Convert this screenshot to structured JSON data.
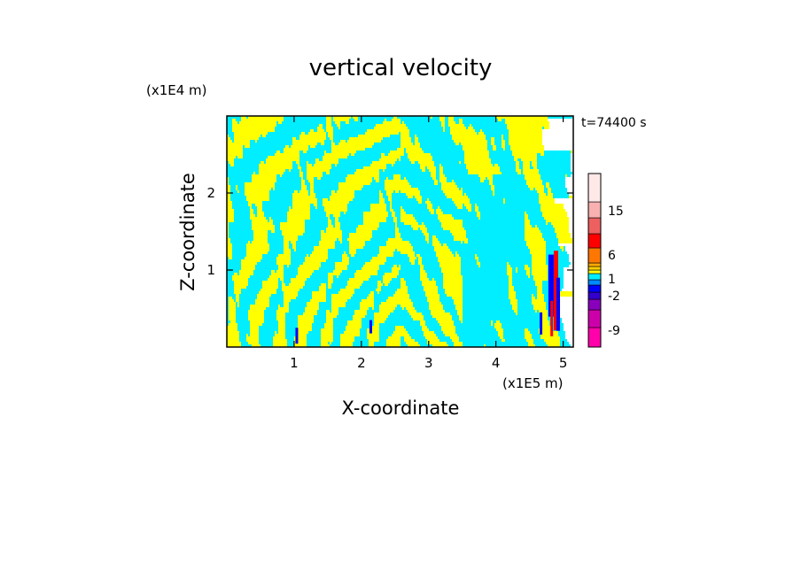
{
  "chart_data": {
    "type": "heatmap",
    "title": "vertical velocity",
    "xlabel": "X-coordinate",
    "ylabel": "Z-coordinate",
    "x_unit": "(x1E5 m)",
    "y_unit": "(x1E4 m)",
    "time_label": "t=74400 s",
    "xlim": [
      0,
      5.15
    ],
    "ylim": [
      0,
      3.0
    ],
    "x_ticks": [
      1,
      2,
      3,
      4,
      5
    ],
    "y_ticks": [
      1,
      2
    ],
    "x_tick_labels": [
      "1",
      "2",
      "3",
      "4",
      "5"
    ],
    "y_tick_labels": [
      "1",
      "2"
    ],
    "grid": false,
    "colorbar": {
      "position": "right",
      "tick_labels": [
        "15",
        "6",
        "1",
        "-2",
        "-9"
      ],
      "levels": [
        {
          "color": "#ff00aa"
        },
        {
          "color": "#cc00aa"
        },
        {
          "color": "#8800bb"
        },
        {
          "color": "#3300cc"
        },
        {
          "color": "#0000ff"
        },
        {
          "color": "#0088ff"
        },
        {
          "color": "#00eeff"
        },
        {
          "color": "#ffff00"
        },
        {
          "color": "#ffd000"
        },
        {
          "color": "#ffaa00"
        },
        {
          "color": "#ff7700"
        },
        {
          "color": "#ff0000"
        },
        {
          "color": "#ee6060"
        },
        {
          "color": "#f8b0b0"
        },
        {
          "color": "#ffe8e8"
        }
      ]
    },
    "field_colors": {
      "updraft": "#ffff00",
      "downdraft": "#00eeff",
      "strong_down": "#0000ff",
      "strong_up": "#ff0000"
    }
  }
}
